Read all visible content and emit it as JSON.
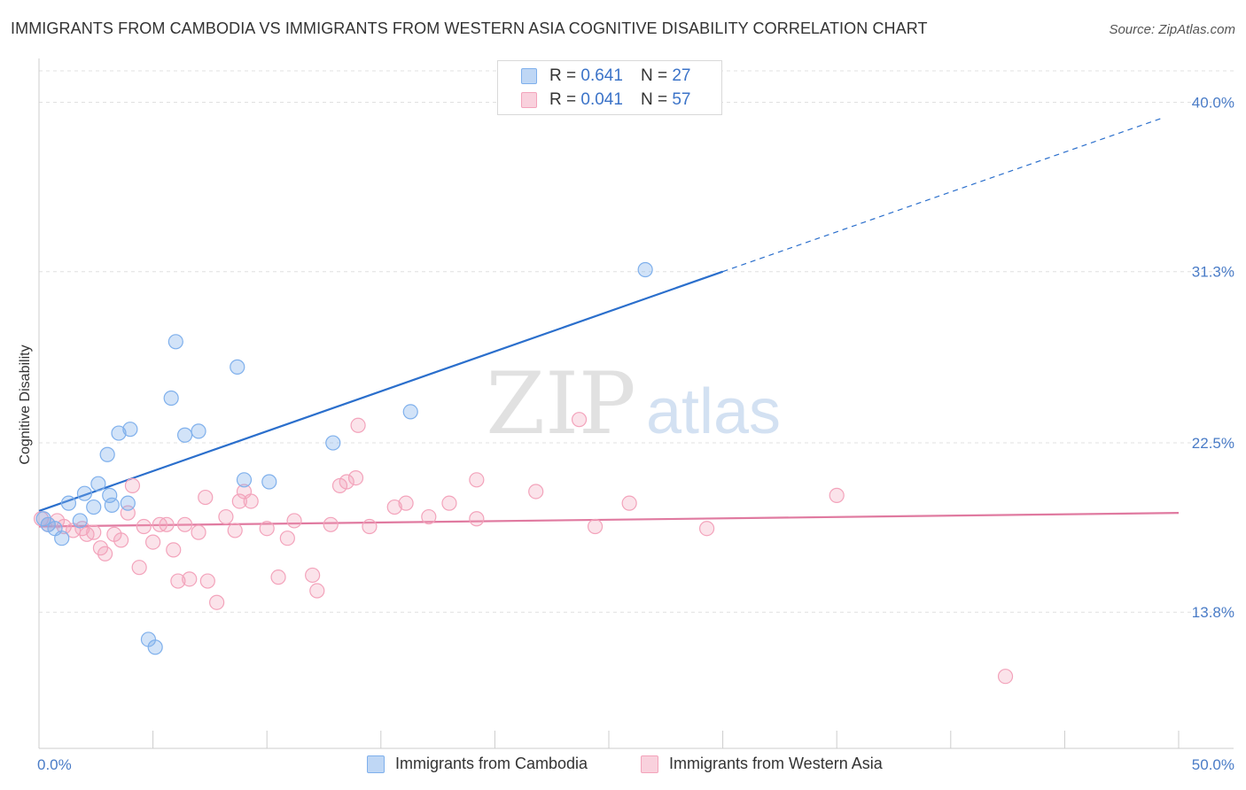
{
  "title": "IMMIGRANTS FROM CAMBODIA VS IMMIGRANTS FROM WESTERN ASIA COGNITIVE DISABILITY CORRELATION CHART",
  "source": "Source: ZipAtlas.com",
  "watermark": {
    "zip": "ZIP",
    "atlas": "atlas"
  },
  "stats": [
    {
      "r_label": "R =",
      "r_value": "0.641",
      "n_label": "N =",
      "n_value": "27",
      "color": "#7fb0ec"
    },
    {
      "r_label": "R =",
      "r_value": "0.041",
      "n_label": "N =",
      "n_value": "57",
      "color": "#f3a3bb"
    }
  ],
  "chart_data": {
    "type": "scatter",
    "xlabel": "",
    "ylabel": "Cognitive Disability",
    "xlim": [
      0,
      50
    ],
    "ylim": [
      6.8,
      41.8
    ],
    "x_tick_labels": [
      "0.0%",
      "50.0%"
    ],
    "y_ticks": [
      13.8,
      22.5,
      31.3,
      40.0
    ],
    "y_tick_labels": [
      "13.8%",
      "22.5%",
      "31.3%",
      "40.0%"
    ],
    "grid": "horizontal dashed",
    "legend_position": "bottom-center",
    "series": [
      {
        "name": "Immigrants from Cambodia",
        "color": "#7fb0ec",
        "line_color": "#2b6fcc",
        "trend": {
          "x": [
            0,
            30
          ],
          "y": [
            19.0,
            31.3
          ],
          "extend_to_x": 49.3,
          "extend_y": 39.2
        },
        "points": [
          [
            0.2,
            18.6
          ],
          [
            0.4,
            18.3
          ],
          [
            0.7,
            18.1
          ],
          [
            1.0,
            17.6
          ],
          [
            1.3,
            19.4
          ],
          [
            1.8,
            18.5
          ],
          [
            2.0,
            19.9
          ],
          [
            2.4,
            19.2
          ],
          [
            2.6,
            20.4
          ],
          [
            3.0,
            21.9
          ],
          [
            3.1,
            19.8
          ],
          [
            3.2,
            19.3
          ],
          [
            3.9,
            19.4
          ],
          [
            3.5,
            23.0
          ],
          [
            4.0,
            23.2
          ],
          [
            4.8,
            12.4
          ],
          [
            5.1,
            12.0
          ],
          [
            5.8,
            24.8
          ],
          [
            6.0,
            27.7
          ],
          [
            6.4,
            22.9
          ],
          [
            7.0,
            23.1
          ],
          [
            8.7,
            26.4
          ],
          [
            9.0,
            20.6
          ],
          [
            10.1,
            20.5
          ],
          [
            12.9,
            22.5
          ],
          [
            16.3,
            24.1
          ],
          [
            26.6,
            31.4
          ]
        ]
      },
      {
        "name": "Immigrants from Western Asia",
        "color": "#f3a3bb",
        "line_color": "#e07aa0",
        "trend": {
          "x": [
            0,
            50
          ],
          "y": [
            18.2,
            18.9
          ]
        },
        "points": [
          [
            0.1,
            18.6
          ],
          [
            0.4,
            18.3
          ],
          [
            0.8,
            18.5
          ],
          [
            1.1,
            18.2
          ],
          [
            1.5,
            18.0
          ],
          [
            1.9,
            18.1
          ],
          [
            2.1,
            17.8
          ],
          [
            2.4,
            17.9
          ],
          [
            2.7,
            17.1
          ],
          [
            2.9,
            16.8
          ],
          [
            3.3,
            17.8
          ],
          [
            3.6,
            17.5
          ],
          [
            3.9,
            18.9
          ],
          [
            4.1,
            20.3
          ],
          [
            4.4,
            16.1
          ],
          [
            4.6,
            18.2
          ],
          [
            5.0,
            17.4
          ],
          [
            5.3,
            18.3
          ],
          [
            5.6,
            18.3
          ],
          [
            5.9,
            17.0
          ],
          [
            6.1,
            15.4
          ],
          [
            6.4,
            18.3
          ],
          [
            6.6,
            15.5
          ],
          [
            7.0,
            17.9
          ],
          [
            7.3,
            19.7
          ],
          [
            7.4,
            15.4
          ],
          [
            7.8,
            14.3
          ],
          [
            8.2,
            18.7
          ],
          [
            8.6,
            18.0
          ],
          [
            8.8,
            19.5
          ],
          [
            9.0,
            20.0
          ],
          [
            9.3,
            19.5
          ],
          [
            10.0,
            18.1
          ],
          [
            10.5,
            15.6
          ],
          [
            10.9,
            17.6
          ],
          [
            11.2,
            18.5
          ],
          [
            12.0,
            15.7
          ],
          [
            12.2,
            14.9
          ],
          [
            12.8,
            18.3
          ],
          [
            13.2,
            20.3
          ],
          [
            13.5,
            20.5
          ],
          [
            13.9,
            20.7
          ],
          [
            14.0,
            23.4
          ],
          [
            14.5,
            18.2
          ],
          [
            15.6,
            19.2
          ],
          [
            16.1,
            19.4
          ],
          [
            17.1,
            18.7
          ],
          [
            18.0,
            19.4
          ],
          [
            19.2,
            18.6
          ],
          [
            19.2,
            20.6
          ],
          [
            21.8,
            20.0
          ],
          [
            23.7,
            23.7
          ],
          [
            24.4,
            18.2
          ],
          [
            25.9,
            19.4
          ],
          [
            29.3,
            18.1
          ],
          [
            35.0,
            19.8
          ],
          [
            42.4,
            10.5
          ]
        ]
      }
    ]
  }
}
